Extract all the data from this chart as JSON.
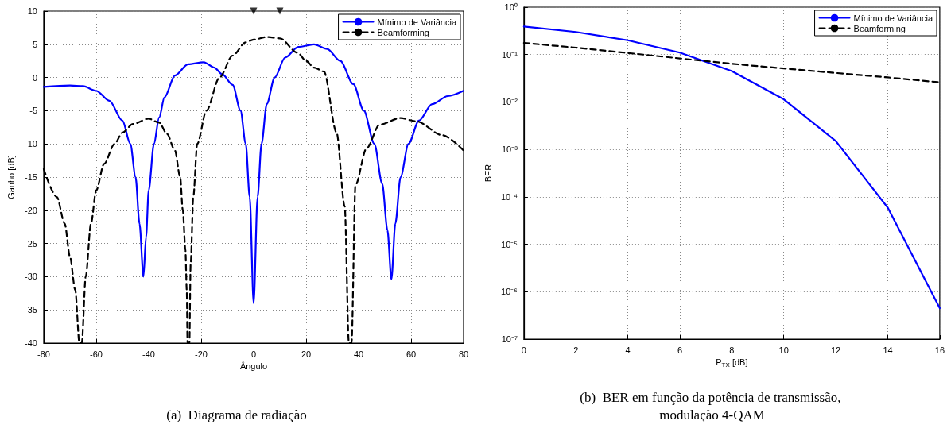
{
  "chart_data": [
    {
      "type": "line",
      "title": "(a)  Diagrama de radiação",
      "xlabel": "Ângulo",
      "ylabel": "Ganho [dB]",
      "xlim": [
        -80,
        80
      ],
      "ylim": [
        -40,
        10
      ],
      "xticks": [
        -80,
        -60,
        -40,
        -20,
        0,
        20,
        40,
        60,
        80
      ],
      "yticks": [
        -40,
        -35,
        -30,
        -25,
        -20,
        -15,
        -10,
        -5,
        0,
        5,
        10
      ],
      "grid": true,
      "legend": "top right",
      "marker": "none",
      "series": [
        {
          "name": "Mínimo de Variância",
          "color": "#0000ff",
          "line_style": "solid",
          "x": [
            -80,
            -70,
            -65,
            -60,
            -55,
            -50,
            -47,
            -45,
            -43.5,
            -42,
            -41,
            -40,
            -38,
            -36,
            -34,
            -30,
            -25,
            -19,
            -15,
            -12,
            -8,
            -5,
            -3,
            -1.5,
            0,
            1.5,
            3,
            5,
            8,
            12,
            17,
            23,
            28,
            33,
            38,
            42,
            46,
            49,
            51,
            52.5,
            54,
            56,
            59,
            63,
            68,
            74,
            80
          ],
          "values": [
            -1.4,
            -1.2,
            -1.3,
            -2,
            -3.5,
            -6.5,
            -10,
            -15,
            -22,
            -30,
            -24,
            -17,
            -10,
            -6,
            -3,
            0.3,
            2,
            2.3,
            1.5,
            0.5,
            -1.1,
            -5,
            -10,
            -18,
            -34,
            -18,
            -10,
            -4,
            0,
            3,
            4.6,
            5,
            4.3,
            2.5,
            -1,
            -5,
            -10,
            -16,
            -23,
            -30.4,
            -22,
            -15,
            -10,
            -6.5,
            -4,
            -2.8,
            -2
          ]
        },
        {
          "name": "Beamforming",
          "color": "#000000",
          "line_style": "dashed",
          "x": [
            -80,
            -75,
            -72,
            -70,
            -68,
            -66.4,
            -65.5,
            -64,
            -62,
            -60,
            -57,
            -53,
            -50,
            -46,
            -40,
            -36,
            -33,
            -30,
            -28,
            -27,
            -26,
            -25.5,
            -25.2,
            -24.5,
            -24,
            -23,
            -21.5,
            -18,
            -13,
            -8,
            -3,
            0,
            5,
            10,
            16.8,
            20,
            23,
            26.8,
            31.6,
            34.7,
            36.3,
            37.3,
            38.8,
            43,
            48,
            56,
            62,
            72,
            80
          ],
          "values": [
            -13.8,
            -18,
            -22,
            -27,
            -32,
            -40,
            -40,
            -30,
            -22,
            -17,
            -13,
            -10,
            -8.3,
            -7,
            -6.2,
            -6.8,
            -8.5,
            -11,
            -15,
            -20,
            -26,
            -32,
            -40,
            -40,
            -28,
            -18,
            -10,
            -5,
            0,
            3.3,
            5.3,
            5.7,
            6.1,
            5.9,
            3.7,
            2.5,
            1.5,
            0.9,
            -8.3,
            -19.4,
            -40,
            -40,
            -16.2,
            -10.7,
            -7.1,
            -6.1,
            -6.6,
            -8.7,
            -11
          ]
        },
        {
          "type": "scatter",
          "marker": "triangle",
          "color": "#000000",
          "x": [
            0,
            10
          ],
          "values": [
            10,
            10
          ]
        }
      ]
    },
    {
      "type": "line",
      "title": "(b)  BER em função da potência de transmissão, modulação 4-QAM",
      "xlabel": "P$_{TX}$ [dB]",
      "ylabel": "BER",
      "log": "y",
      "xlim": [
        0,
        16
      ],
      "ylim": [
        1e-07,
        1
      ],
      "xticks": [
        0,
        2,
        4,
        6,
        8,
        10,
        12,
        14,
        16
      ],
      "yticks": [
        {
          "value": 1e-07,
          "label": "10⁻⁷"
        },
        {
          "value": 1e-06,
          "label": "10⁻⁶"
        },
        {
          "value": 1e-05,
          "label": "10⁻⁵"
        },
        {
          "value": 0.0001,
          "label": "10⁻⁴"
        },
        {
          "value": 0.001,
          "label": "10⁻³"
        },
        {
          "value": 0.01,
          "label": "10⁻²"
        },
        {
          "value": 0.1,
          "label": "10⁻¹"
        },
        {
          "value": 1,
          "label": "10⁰"
        }
      ],
      "grid": true,
      "legend": "top right",
      "marker": "none",
      "series": [
        {
          "name": "Mínimo de Variância",
          "color": "#0000ff",
          "line_style": "solid",
          "x": [
            0,
            2,
            4,
            6,
            8,
            10,
            12,
            14,
            16
          ],
          "values": [
            0.39,
            0.3,
            0.2,
            0.11,
            0.045,
            0.0114,
            0.0015,
            5.9e-05,
            4.5e-07
          ]
        },
        {
          "name": "Beamforming",
          "color": "#000000",
          "line_style": "dashed",
          "x": [
            0,
            2,
            4,
            6,
            8,
            10,
            12,
            14,
            16
          ],
          "values": [
            0.176,
            0.14,
            0.108,
            0.083,
            0.064,
            0.051,
            0.041,
            0.033,
            0.026
          ]
        }
      ]
    }
  ]
}
